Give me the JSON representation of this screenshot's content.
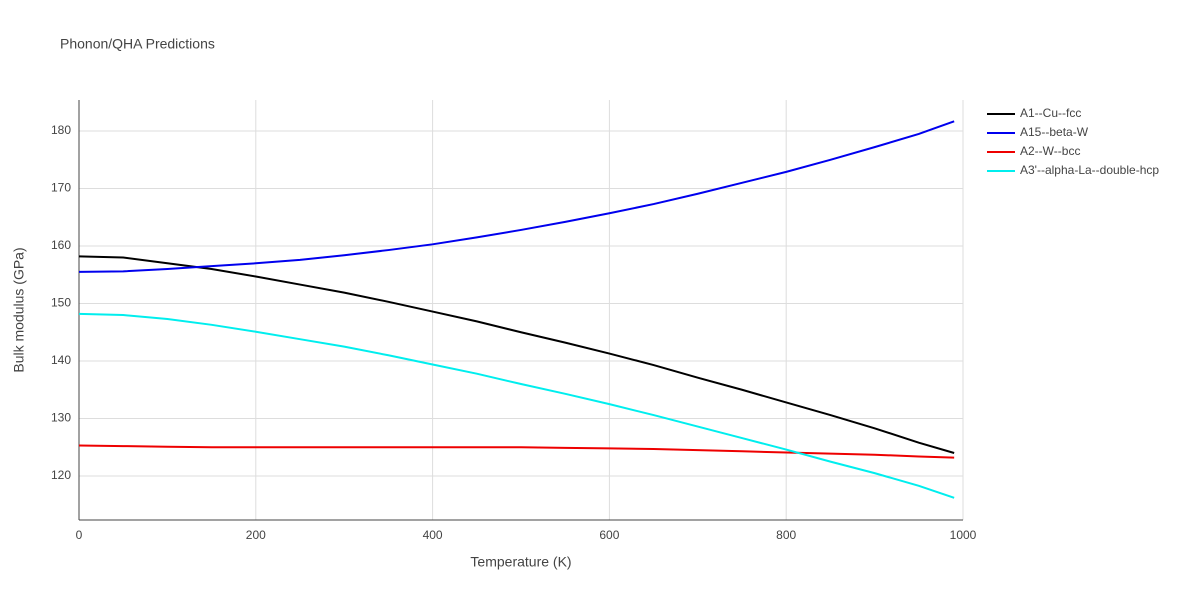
{
  "chart_data": {
    "type": "line",
    "title": "Phonon/QHA Predictions",
    "x_label": "Temperature (K)",
    "y_label": "Bulk modulus (GPa)",
    "x": [
      0,
      50,
      100,
      150,
      200,
      250,
      300,
      350,
      400,
      450,
      500,
      550,
      600,
      650,
      700,
      750,
      800,
      850,
      900,
      950,
      990
    ],
    "series": [
      {
        "name": "A1--Cu--fcc",
        "color": "#000000",
        "values": [
          158.2,
          158.0,
          157.0,
          156.0,
          154.7,
          153.3,
          151.9,
          150.3,
          148.6,
          146.9,
          145.0,
          143.2,
          141.3,
          139.3,
          137.1,
          135.0,
          132.8,
          130.6,
          128.3,
          125.8,
          124.0
        ]
      },
      {
        "name": "A15--beta-W",
        "color": "#0000ee",
        "values": [
          155.5,
          155.6,
          156.0,
          156.5,
          157.0,
          157.6,
          158.4,
          159.3,
          160.3,
          161.5,
          162.8,
          164.2,
          165.7,
          167.3,
          169.1,
          171.0,
          172.9,
          175.0,
          177.2,
          179.5,
          181.7
        ]
      },
      {
        "name": "A2--W--bcc",
        "color": "#ee0000",
        "values": [
          125.3,
          125.2,
          125.1,
          125.0,
          125.0,
          125.0,
          125.0,
          125.0,
          125.0,
          125.0,
          125.0,
          124.9,
          124.8,
          124.7,
          124.5,
          124.3,
          124.1,
          123.9,
          123.7,
          123.4,
          123.2
        ]
      },
      {
        "name": "A3'--alpha-La--double-hcp",
        "color": "#00eeee",
        "values": [
          148.2,
          148.0,
          147.3,
          146.3,
          145.1,
          143.8,
          142.5,
          141.0,
          139.4,
          137.8,
          136.0,
          134.3,
          132.5,
          130.6,
          128.6,
          126.6,
          124.6,
          122.5,
          120.5,
          118.3,
          116.2
        ]
      }
    ],
    "xlim": [
      0,
      1000
    ],
    "xticks": [
      0,
      200,
      400,
      600,
      800,
      1000
    ],
    "ylim": [
      112.35,
      185.4
    ],
    "yticks": [
      120,
      130,
      140,
      150,
      160,
      170,
      180
    ],
    "grid": true,
    "legend": "right"
  }
}
